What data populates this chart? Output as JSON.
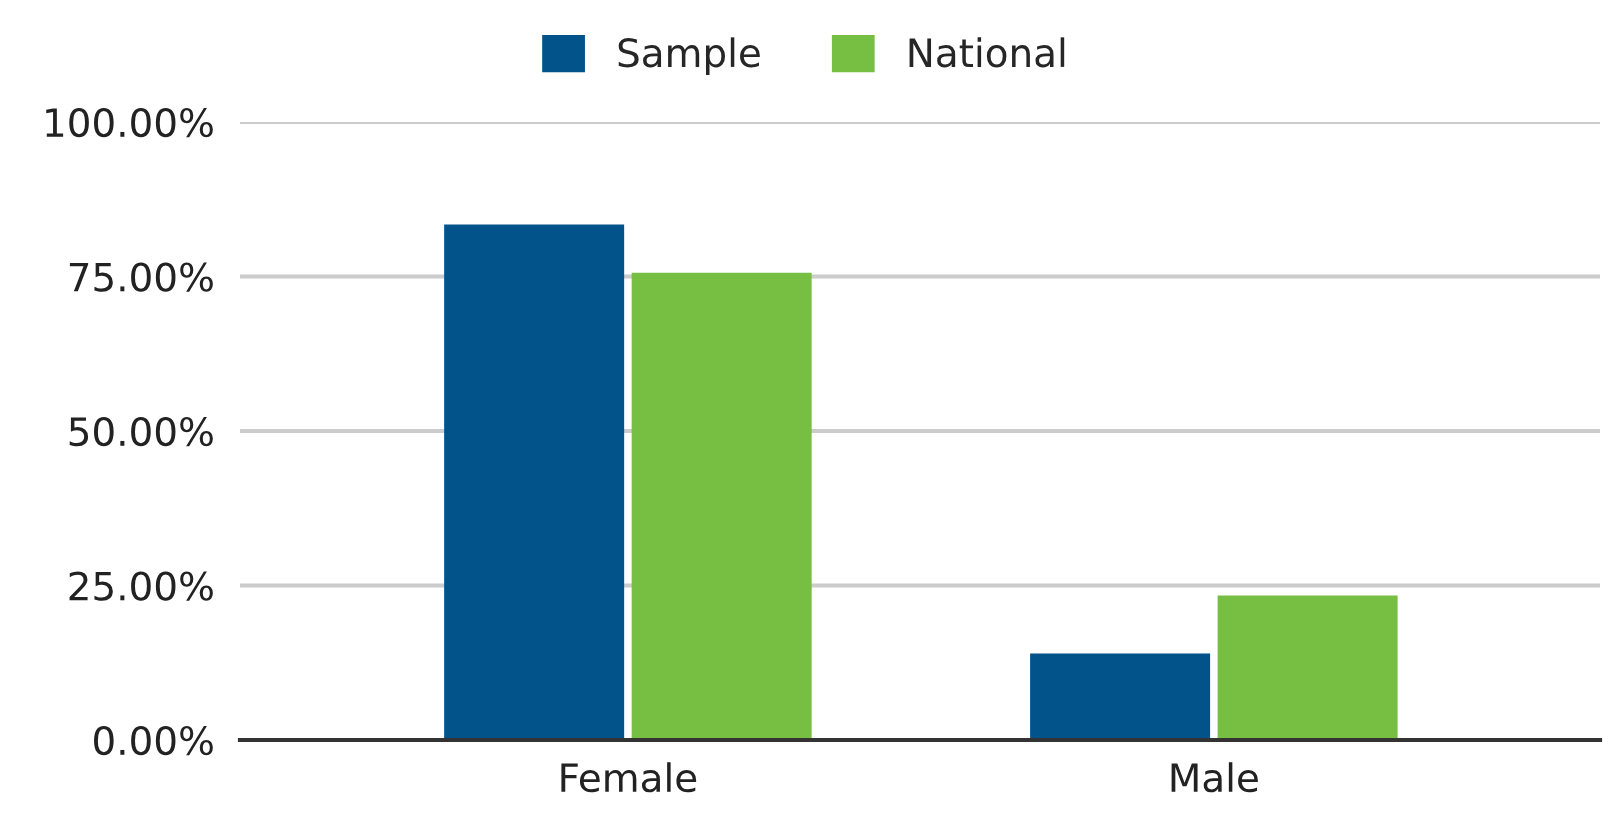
{
  "chart_data": {
    "type": "bar",
    "categories": [
      "Female",
      "Male"
    ],
    "series": [
      {
        "name": "Sample",
        "color": "#02538a",
        "values": [
          83.4,
          14.0
        ]
      },
      {
        "name": "National",
        "color": "#76bf43",
        "values": [
          75.6,
          23.4
        ]
      }
    ],
    "ylim": [
      0,
      100
    ],
    "yticks": [
      {
        "value": 0,
        "label": "0.00%"
      },
      {
        "value": 25,
        "label": "25.00%"
      },
      {
        "value": 50,
        "label": "50.00%"
      },
      {
        "value": 75,
        "label": "75.00%"
      },
      {
        "value": 100,
        "label": "100.00%"
      }
    ],
    "grid": "y",
    "legend": "top"
  }
}
